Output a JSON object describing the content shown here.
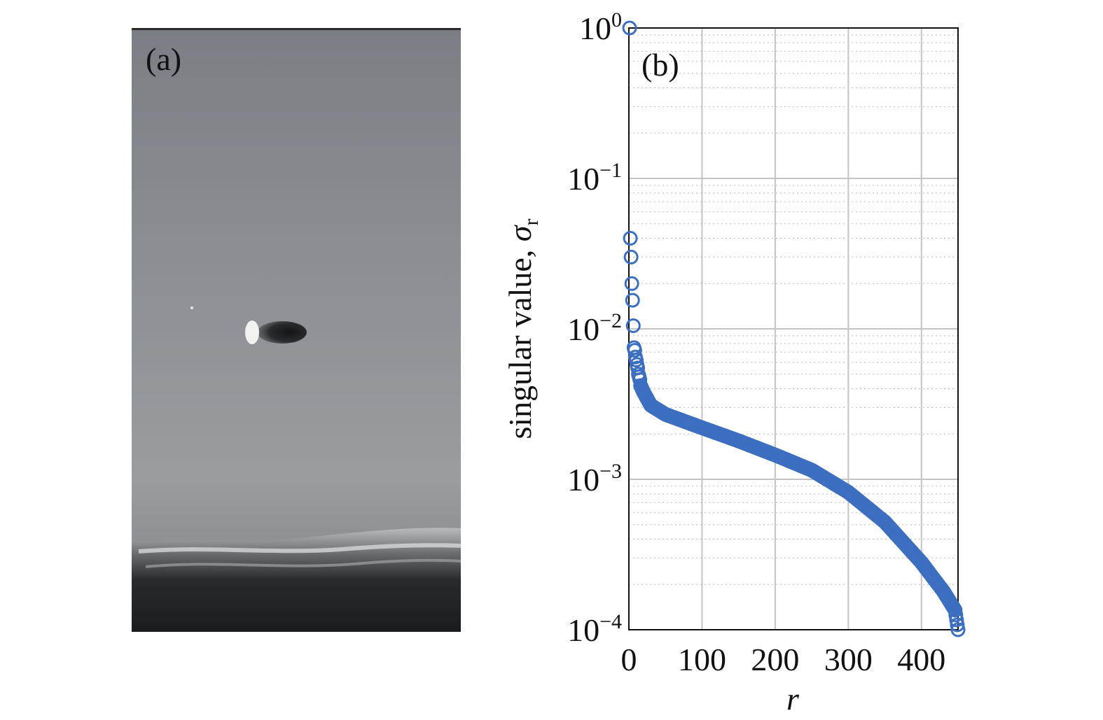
{
  "panel_a": {
    "label": "(a)"
  },
  "panel_b": {
    "label": "(b)"
  },
  "chart_data": {
    "type": "scatter",
    "xlabel": "r",
    "ylabel": "singular value, σ",
    "ylabel_subscript": "r",
    "xlim": [
      0,
      450
    ],
    "ylim": [
      0.0001,
      1
    ],
    "yscale": "log",
    "xticks": [
      0,
      100,
      200,
      300,
      400
    ],
    "xtick_labels": [
      "0",
      "100",
      "200",
      "300",
      "400"
    ],
    "ytick_labels": [
      {
        "value": 1,
        "base": "10",
        "exp": "0"
      },
      {
        "value": 0.1,
        "base": "10",
        "exp": "−1"
      },
      {
        "value": 0.01,
        "base": "10",
        "exp": "−2"
      },
      {
        "value": 0.001,
        "base": "10",
        "exp": "−3"
      },
      {
        "value": 0.0001,
        "base": "10",
        "exp": "−4"
      }
    ],
    "grid": true,
    "marker_color": "#3d6fc0",
    "marker": "open-circle",
    "points_head": [
      [
        1,
        1.0
      ],
      [
        2,
        0.04
      ],
      [
        3,
        0.03
      ],
      [
        4,
        0.02
      ],
      [
        5,
        0.0155
      ],
      [
        6,
        0.0105
      ],
      [
        7,
        0.0075
      ],
      [
        8,
        0.0072
      ],
      [
        9,
        0.0065
      ],
      [
        10,
        0.0062
      ],
      [
        11,
        0.0058
      ],
      [
        12,
        0.0055
      ],
      [
        13,
        0.005
      ],
      [
        14,
        0.0048
      ],
      [
        15,
        0.0046
      ]
    ],
    "curve_anchors": [
      [
        16,
        0.0042
      ],
      [
        20,
        0.0038
      ],
      [
        30,
        0.0031
      ],
      [
        50,
        0.0027
      ],
      [
        100,
        0.0022
      ],
      [
        150,
        0.0018
      ],
      [
        200,
        0.00145
      ],
      [
        250,
        0.00115
      ],
      [
        300,
        0.00082
      ],
      [
        350,
        0.00052
      ],
      [
        400,
        0.00028
      ],
      [
        430,
        0.00018
      ],
      [
        446,
        0.000135
      ],
      [
        450,
        0.0001
      ]
    ]
  }
}
